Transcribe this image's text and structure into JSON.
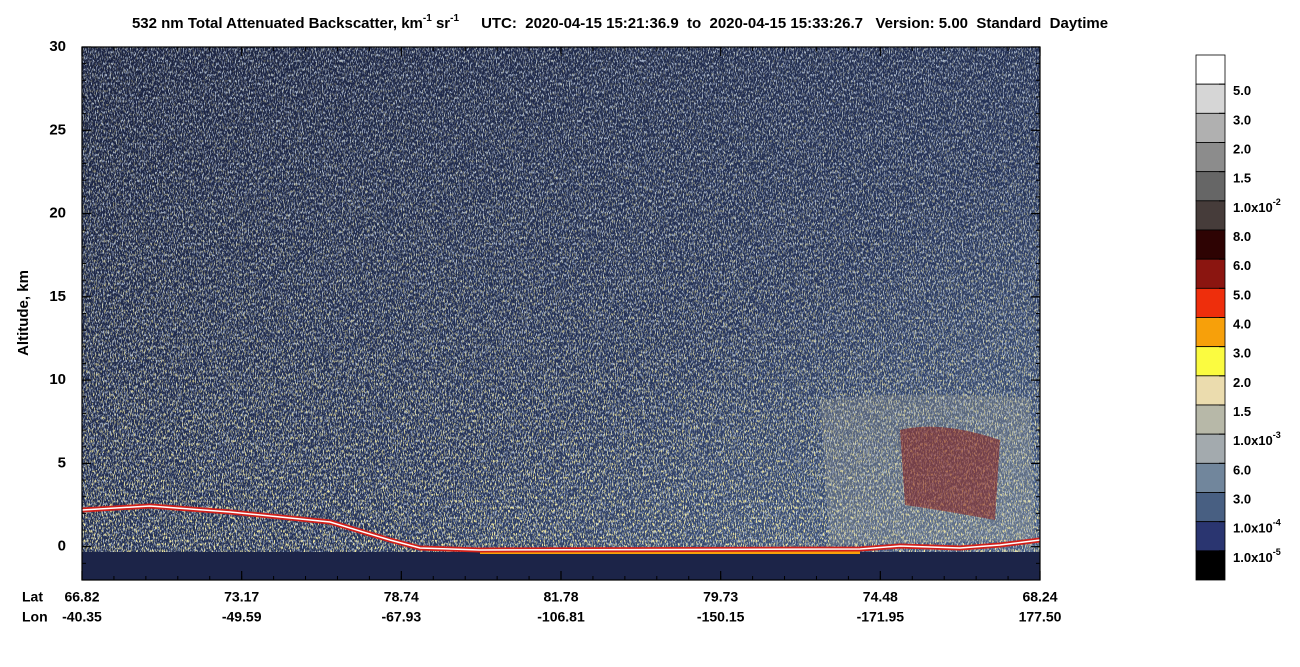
{
  "chart_data": {
    "type": "heatmap",
    "title": [
      {
        "text": "532 nm Total Attenuated Backscatter, km"
      },
      {
        "text": "-1",
        "sup": true
      },
      {
        "text": " sr"
      },
      {
        "text": "-1",
        "sup": true
      }
    ],
    "subtitle": "UTC:  2020-04-15 15:21:36.9  to  2020-04-15 15:33:26.7   Version: 5.00  Standard  Daytime",
    "ylabel": "Altitude, km",
    "ylim": [
      -2,
      30
    ],
    "yticks": [
      0,
      5,
      10,
      15,
      20,
      25,
      30
    ],
    "yminor": 1,
    "x_row_labels": [
      "Lat",
      "Lon"
    ],
    "lat": [
      "66.82",
      "73.17",
      "78.74",
      "81.78",
      "79.73",
      "74.48",
      "68.24"
    ],
    "lon": [
      "-40.35",
      "-49.59",
      "-67.93",
      "-106.81",
      "-150.15",
      "-171.95",
      "177.50"
    ],
    "colorbar": [
      {
        "value": 0.05,
        "label": "5.0"
      },
      {
        "value": 0.03,
        "label": "3.0"
      },
      {
        "value": 0.02,
        "label": "2.0"
      },
      {
        "value": 0.015,
        "label": "1.5"
      },
      {
        "value": 0.01,
        "label": "1.0x10",
        "exp": "-2"
      },
      {
        "value": 0.008,
        "label": "8.0"
      },
      {
        "value": 0.006,
        "label": "6.0"
      },
      {
        "value": 0.005,
        "label": "5.0"
      },
      {
        "value": 0.004,
        "label": "4.0"
      },
      {
        "value": 0.003,
        "label": "3.0"
      },
      {
        "value": 0.002,
        "label": "2.0"
      },
      {
        "value": 0.0015,
        "label": "1.5"
      },
      {
        "value": 0.001,
        "label": "1.0x10",
        "exp": "-3"
      },
      {
        "value": 0.0006,
        "label": "6.0"
      },
      {
        "value": 0.0003,
        "label": "3.0"
      },
      {
        "value": 0.0001,
        "label": "1.0x10",
        "exp": "-4"
      },
      {
        "value": 1e-05,
        "label": "1.0x10",
        "exp": "-5"
      }
    ],
    "colorbar_colors": [
      "#ffffff",
      "#d6d6d6",
      "#b0b0b0",
      "#8c8c8c",
      "#666666",
      "#463c3a",
      "#2e0303",
      "#8b1510",
      "#ee2e0c",
      "#f7a00a",
      "#fbfb40",
      "#ebdcae",
      "#b7b8a8",
      "#a3aaae",
      "#71869c",
      "#485f82",
      "#2a3570",
      "#000000"
    ]
  }
}
